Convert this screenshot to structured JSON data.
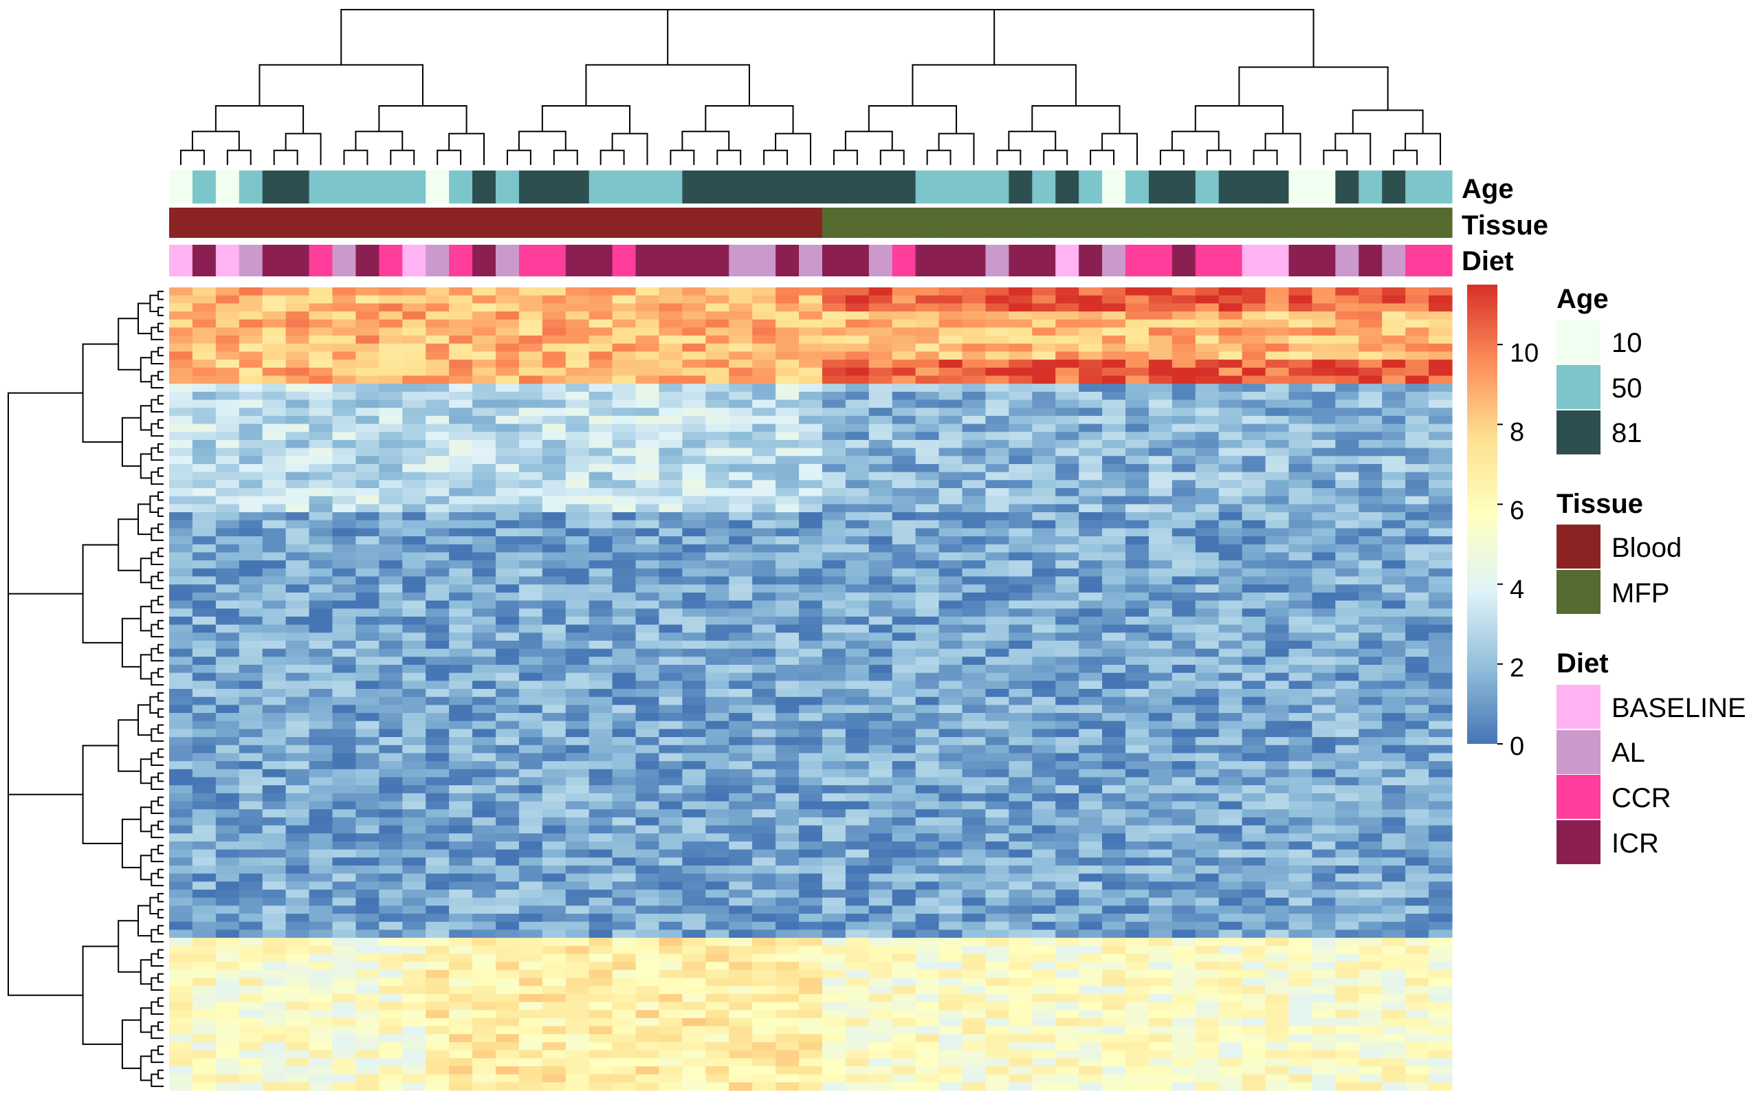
{
  "chart_data": {
    "type": "heatmap",
    "n_columns": 55,
    "n_rows": 100,
    "annotation_rows": [
      {
        "name": "Age",
        "values": [
          "10",
          "50",
          "10",
          "50",
          "81",
          "81",
          "50",
          "50",
          "50",
          "50",
          "50",
          "10",
          "50",
          "81",
          "50",
          "81",
          "81",
          "81",
          "50",
          "50",
          "50",
          "50",
          "81",
          "81",
          "81",
          "81",
          "81",
          "81",
          "81",
          "81",
          "81",
          "81",
          "50",
          "50",
          "50",
          "50",
          "81",
          "50",
          "81",
          "50",
          "10",
          "50",
          "81",
          "81",
          "50",
          "81",
          "81",
          "81",
          "10",
          "10",
          "81",
          "50",
          "81",
          "50",
          "50"
        ]
      },
      {
        "name": "Tissue",
        "values": [
          "Blood",
          "Blood",
          "Blood",
          "Blood",
          "Blood",
          "Blood",
          "Blood",
          "Blood",
          "Blood",
          "Blood",
          "Blood",
          "Blood",
          "Blood",
          "Blood",
          "Blood",
          "Blood",
          "Blood",
          "Blood",
          "Blood",
          "Blood",
          "Blood",
          "Blood",
          "Blood",
          "Blood",
          "Blood",
          "Blood",
          "Blood",
          "Blood",
          "MFP",
          "MFP",
          "MFP",
          "MFP",
          "MFP",
          "MFP",
          "MFP",
          "MFP",
          "MFP",
          "MFP",
          "MFP",
          "MFP",
          "MFP",
          "MFP",
          "MFP",
          "MFP",
          "MFP",
          "MFP",
          "MFP",
          "MFP",
          "MFP",
          "MFP",
          "MFP",
          "MFP",
          "MFP",
          "MFP",
          "MFP"
        ]
      },
      {
        "name": "Diet",
        "values": [
          "BASELINE",
          "ICR",
          "BASELINE",
          "AL",
          "ICR",
          "ICR",
          "CCR",
          "AL",
          "ICR",
          "CCR",
          "BASELINE",
          "AL",
          "CCR",
          "ICR",
          "AL",
          "CCR",
          "CCR",
          "ICR",
          "ICR",
          "CCR",
          "ICR",
          "ICR",
          "ICR",
          "ICR",
          "AL",
          "AL",
          "ICR",
          "AL",
          "ICR",
          "ICR",
          "AL",
          "CCR",
          "ICR",
          "ICR",
          "ICR",
          "AL",
          "ICR",
          "ICR",
          "BASELINE",
          "ICR",
          "AL",
          "CCR",
          "CCR",
          "ICR",
          "CCR",
          "CCR",
          "BASELINE",
          "BASELINE",
          "ICR",
          "ICR",
          "AL",
          "ICR",
          "AL",
          "CCR",
          "CCR"
        ]
      }
    ],
    "row_blocks": [
      {
        "rows": [
          0,
          11
        ],
        "base": 8.5
      },
      {
        "rows": [
          12,
          27
        ],
        "base": 3.0
      },
      {
        "rows": [
          28,
          80
        ],
        "base": 1.3
      },
      {
        "rows": [
          81,
          99
        ],
        "base": 5.5
      }
    ],
    "legends": [
      {
        "title": "Age",
        "items": [
          {
            "label": "10",
            "color": "#F0FFF0"
          },
          {
            "label": "50",
            "color": "#7CC5CA"
          },
          {
            "label": "81",
            "color": "#2E4F4F"
          }
        ]
      },
      {
        "title": "Tissue",
        "items": [
          {
            "label": "Blood",
            "color": "#8B2323"
          },
          {
            "label": "MFP",
            "color": "#556B2F"
          }
        ]
      },
      {
        "title": "Diet",
        "items": [
          {
            "label": "BASELINE",
            "color": "#FFB3F2"
          },
          {
            "label": "AL",
            "color": "#CC99CC"
          },
          {
            "label": "CCR",
            "color": "#FF3D9A"
          },
          {
            "label": "ICR",
            "color": "#8B1F52"
          }
        ]
      }
    ],
    "colorbar": {
      "ticks": [
        "0",
        "2",
        "4",
        "6",
        "8",
        "10"
      ],
      "range": [
        0,
        11.5
      ],
      "colors": [
        "#4575B4",
        "#91BFDB",
        "#E0F3F8",
        "#FFFFBF",
        "#FEE090",
        "#FC8D59",
        "#D73027"
      ]
    },
    "dendrograms": {
      "columns": true,
      "rows": true
    }
  }
}
